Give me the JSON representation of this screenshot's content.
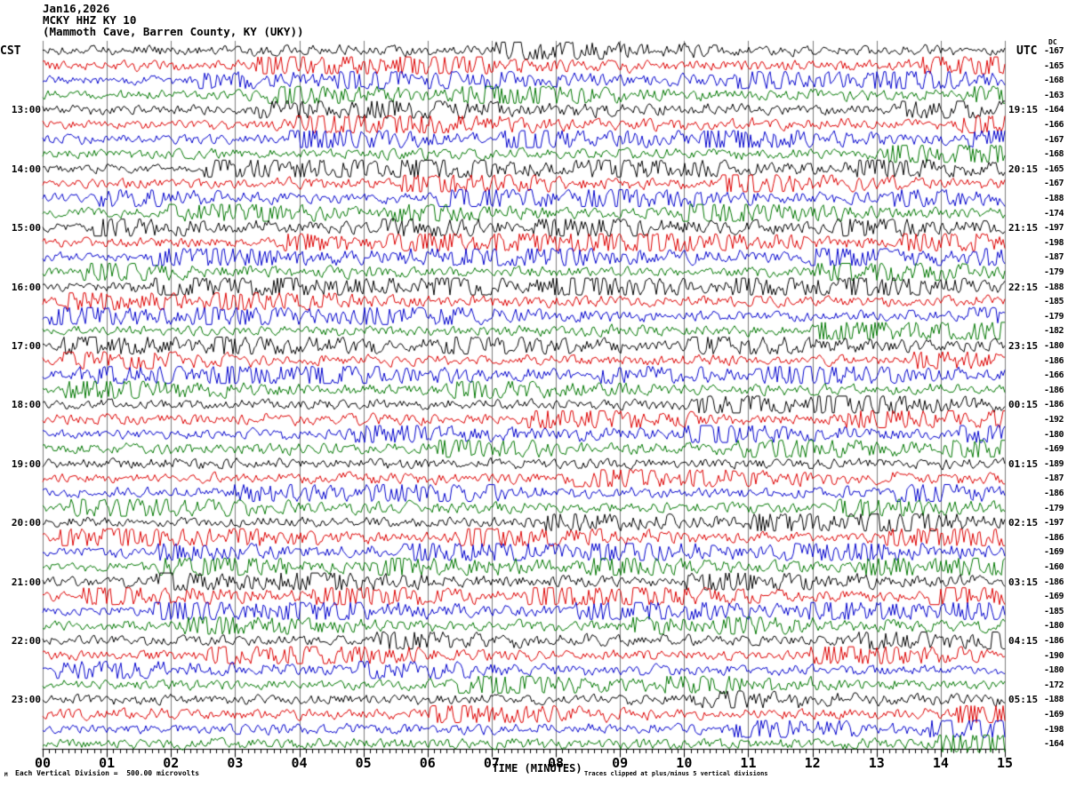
{
  "header": {
    "date": "Jan16,2026",
    "station": "MCKY HHZ KY 10",
    "location": "(Mammoth Cave, Barren County, KY (UKY))"
  },
  "axes": {
    "left_timezone": "CST",
    "right_timezone": "UTC",
    "dc_column_header": "DC",
    "x_label": "TIME (MINUTES)",
    "x_ticks": [
      "00",
      "01",
      "02",
      "03",
      "04",
      "05",
      "06",
      "07",
      "08",
      "09",
      "10",
      "11",
      "12",
      "13",
      "14",
      "15"
    ]
  },
  "footer": {
    "watermark": "M",
    "scale_note": "Each Vertical Division =  500.00 microvolts",
    "clip_note": "Traces clipped at plus/minus 5 vertical divisions"
  },
  "chart_data": {
    "type": "line",
    "subtype": "helicorder-seismogram",
    "title": "MCKY HHZ KY 10 (Mammoth Cave, Barren County, KY (UKY)) Jan16,2026",
    "xlabel": "TIME (MINUTES)",
    "x_range_minutes": [
      0,
      15
    ],
    "minutes_per_line": 15,
    "lines_per_hour": 4,
    "grid": true,
    "grid_color": "#7d7d7d",
    "scale": "Each Vertical Division = 500.00 microvolts",
    "clipping": "Traces clipped at plus/minus 5 vertical divisions",
    "trace_colors": {
      "black": "#000000",
      "red": "#dd0000",
      "blue": "#0000cc",
      "green": "#007700"
    },
    "color_cycle": [
      "black",
      "red",
      "blue",
      "green"
    ],
    "rows": [
      {
        "color": "black",
        "cst": "",
        "utc": "",
        "dc": "-167"
      },
      {
        "color": "red",
        "cst": "",
        "utc": "",
        "dc": "-165"
      },
      {
        "color": "blue",
        "cst": "",
        "utc": "",
        "dc": "-168"
      },
      {
        "color": "green",
        "cst": "",
        "utc": "",
        "dc": "-163"
      },
      {
        "color": "black",
        "cst": "13:00",
        "utc": "19:15",
        "dc": "-164"
      },
      {
        "color": "red",
        "cst": "",
        "utc": "",
        "dc": "-166"
      },
      {
        "color": "blue",
        "cst": "",
        "utc": "",
        "dc": "-167"
      },
      {
        "color": "green",
        "cst": "",
        "utc": "",
        "dc": "-168"
      },
      {
        "color": "black",
        "cst": "14:00",
        "utc": "20:15",
        "dc": "-165"
      },
      {
        "color": "red",
        "cst": "",
        "utc": "",
        "dc": "-167"
      },
      {
        "color": "blue",
        "cst": "",
        "utc": "",
        "dc": "-188"
      },
      {
        "color": "green",
        "cst": "",
        "utc": "",
        "dc": "-174"
      },
      {
        "color": "black",
        "cst": "15:00",
        "utc": "21:15",
        "dc": "-197"
      },
      {
        "color": "red",
        "cst": "",
        "utc": "",
        "dc": "-198"
      },
      {
        "color": "blue",
        "cst": "",
        "utc": "",
        "dc": "-187"
      },
      {
        "color": "green",
        "cst": "",
        "utc": "",
        "dc": "-179"
      },
      {
        "color": "black",
        "cst": "16:00",
        "utc": "22:15",
        "dc": "-188"
      },
      {
        "color": "red",
        "cst": "",
        "utc": "",
        "dc": "-185"
      },
      {
        "color": "blue",
        "cst": "",
        "utc": "",
        "dc": "-179"
      },
      {
        "color": "green",
        "cst": "",
        "utc": "",
        "dc": "-182"
      },
      {
        "color": "black",
        "cst": "17:00",
        "utc": "23:15",
        "dc": "-180"
      },
      {
        "color": "red",
        "cst": "",
        "utc": "",
        "dc": "-186"
      },
      {
        "color": "blue",
        "cst": "",
        "utc": "",
        "dc": "-166"
      },
      {
        "color": "green",
        "cst": "",
        "utc": "",
        "dc": "-186"
      },
      {
        "color": "black",
        "cst": "18:00",
        "utc": "00:15",
        "dc": "-186"
      },
      {
        "color": "red",
        "cst": "",
        "utc": "",
        "dc": "-192"
      },
      {
        "color": "blue",
        "cst": "",
        "utc": "",
        "dc": "-180"
      },
      {
        "color": "green",
        "cst": "",
        "utc": "",
        "dc": "-169"
      },
      {
        "color": "black",
        "cst": "19:00",
        "utc": "01:15",
        "dc": "-189"
      },
      {
        "color": "red",
        "cst": "",
        "utc": "",
        "dc": "-187"
      },
      {
        "color": "blue",
        "cst": "",
        "utc": "",
        "dc": "-186"
      },
      {
        "color": "green",
        "cst": "",
        "utc": "",
        "dc": "-179"
      },
      {
        "color": "black",
        "cst": "20:00",
        "utc": "02:15",
        "dc": "-197"
      },
      {
        "color": "red",
        "cst": "",
        "utc": "",
        "dc": "-186"
      },
      {
        "color": "blue",
        "cst": "",
        "utc": "",
        "dc": "-169"
      },
      {
        "color": "green",
        "cst": "",
        "utc": "",
        "dc": "-160"
      },
      {
        "color": "black",
        "cst": "21:00",
        "utc": "03:15",
        "dc": "-186"
      },
      {
        "color": "red",
        "cst": "",
        "utc": "",
        "dc": "-169"
      },
      {
        "color": "blue",
        "cst": "",
        "utc": "",
        "dc": "-185"
      },
      {
        "color": "green",
        "cst": "",
        "utc": "",
        "dc": "-180"
      },
      {
        "color": "black",
        "cst": "22:00",
        "utc": "04:15",
        "dc": "-186"
      },
      {
        "color": "red",
        "cst": "",
        "utc": "",
        "dc": "-190"
      },
      {
        "color": "blue",
        "cst": "",
        "utc": "",
        "dc": "-180"
      },
      {
        "color": "green",
        "cst": "",
        "utc": "",
        "dc": "-172"
      },
      {
        "color": "black",
        "cst": "23:00",
        "utc": "05:15",
        "dc": "-188"
      },
      {
        "color": "red",
        "cst": "",
        "utc": "",
        "dc": "-169"
      },
      {
        "color": "blue",
        "cst": "",
        "utc": "",
        "dc": "-198"
      },
      {
        "color": "green",
        "cst": "",
        "utc": "",
        "dc": "-164"
      }
    ]
  }
}
